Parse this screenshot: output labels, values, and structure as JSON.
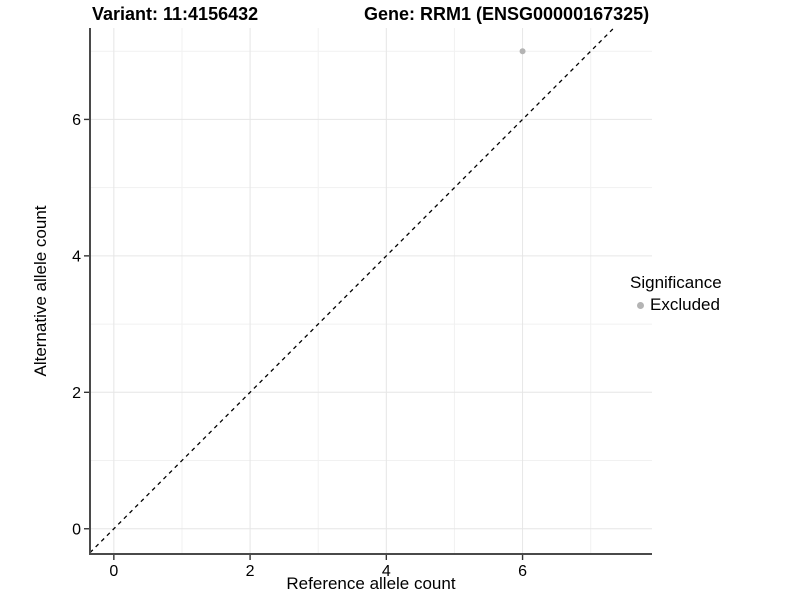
{
  "chart_data": {
    "type": "scatter",
    "title_left": "Variant: 11:4156432",
    "title_right": "Gene: RRM1 (ENSG00000167325)",
    "xlabel": "Reference allele count",
    "ylabel": "Alternative allele count",
    "xlim": [
      -0.35,
      7.9
    ],
    "ylim": [
      -0.37,
      7.34
    ],
    "x_major_ticks": [
      0,
      2,
      4,
      6
    ],
    "y_major_ticks": [
      0,
      2,
      4,
      6
    ],
    "x_minor_ticks": [
      1,
      3,
      5,
      7
    ],
    "y_minor_ticks": [
      1,
      3,
      5,
      7
    ],
    "grid": true,
    "reference_line": {
      "type": "identity",
      "style": "dashed",
      "color": "#000000"
    },
    "series": [
      {
        "name": "Excluded",
        "color": "#b4b4b4",
        "points": [
          {
            "x": 6,
            "y": 7
          }
        ]
      }
    ],
    "legend": {
      "title": "Significance",
      "position": "right",
      "entries": [
        {
          "label": "Excluded",
          "color": "#b4b4b4"
        }
      ]
    },
    "colors": {
      "grid_major": "#e6e6e6",
      "grid_minor": "#f1f1f1",
      "axis_line": "#4a4a4a",
      "tick": "#333333",
      "text": "#000000",
      "background": "#ffffff"
    }
  }
}
